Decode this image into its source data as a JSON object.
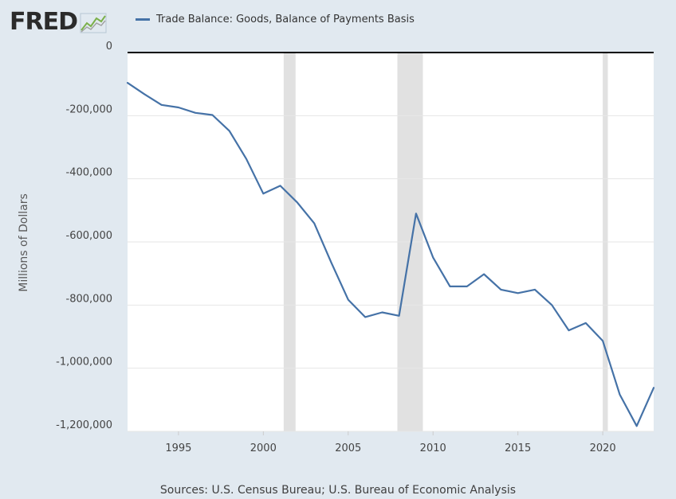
{
  "header": {
    "logo_text": "FRED",
    "logo_mark_icon": "fred-chart-icon"
  },
  "legend": {
    "label": "Trade Balance: Goods, Balance of Payments Basis",
    "color": "#4572a7"
  },
  "footer": {
    "sources": "Sources: U.S. Census Bureau; U.S. Bureau of Economic Analysis"
  },
  "chart_data": {
    "type": "line",
    "title": "",
    "xlabel": "",
    "ylabel": "Millions of Dollars",
    "xlim": [
      1992,
      2023
    ],
    "ylim": [
      -1200000,
      0
    ],
    "x_ticks": [
      1995,
      2000,
      2005,
      2010,
      2015,
      2020
    ],
    "y_ticks": [
      0,
      -200000,
      -400000,
      -600000,
      -800000,
      -1000000,
      -1200000
    ],
    "y_tick_labels": [
      "0",
      "-200,000",
      "-400,000",
      "-600,000",
      "-800,000",
      "-1,000,000",
      "-1,200,000"
    ],
    "grid": "horizontal",
    "zero_line": true,
    "legend_position": "top",
    "recessions": [
      {
        "start": 2001.2,
        "end": 2001.9
      },
      {
        "start": 2007.9,
        "end": 2009.4
      },
      {
        "start": 2020.0,
        "end": 2020.3
      }
    ],
    "series": [
      {
        "name": "Trade Balance: Goods, Balance of Payments Basis",
        "color": "#4572a7",
        "x": [
          1992,
          1993,
          1994,
          1995,
          1996,
          1997,
          1998,
          1999,
          2000,
          2001,
          2002,
          2003,
          2004,
          2005,
          2006,
          2007,
          2008,
          2009,
          2010,
          2011,
          2012,
          2013,
          2014,
          2015,
          2016,
          2017,
          2018,
          2019,
          2020,
          2021,
          2022,
          2023
        ],
        "values": [
          -96000,
          -132000,
          -166000,
          -174000,
          -191000,
          -198000,
          -248000,
          -337000,
          -447000,
          -422000,
          -475000,
          -541000,
          -665000,
          -783000,
          -838000,
          -823000,
          -834000,
          -510000,
          -649000,
          -741000,
          -741000,
          -702000,
          -751000,
          -762000,
          -751000,
          -800000,
          -880000,
          -857000,
          -913000,
          -1083000,
          -1183000,
          -1062000
        ]
      }
    ]
  }
}
